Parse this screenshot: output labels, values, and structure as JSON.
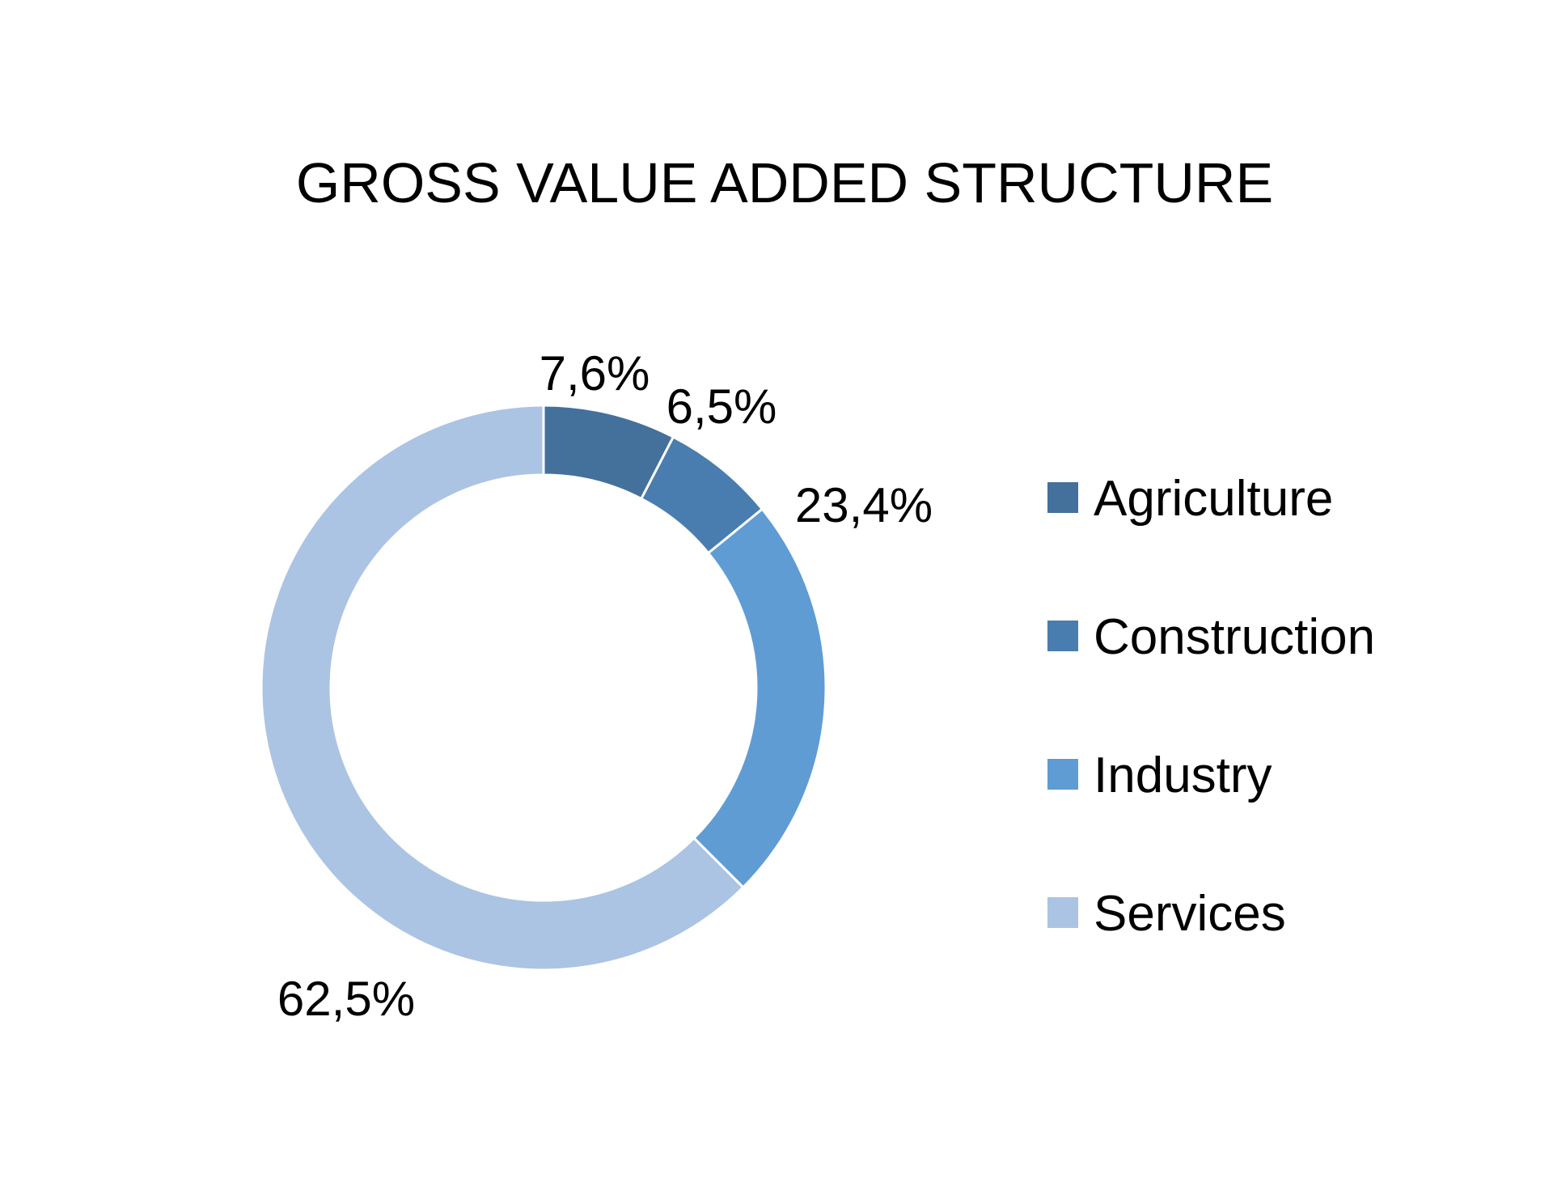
{
  "chart_data": {
    "type": "pie",
    "variant": "donut",
    "title": "GROSS VALUE ADDED STRUCTURE",
    "categories": [
      "Agriculture",
      "Construction",
      "Industry",
      "Services"
    ],
    "values": [
      7.6,
      6.5,
      23.4,
      62.5
    ],
    "data_labels": [
      "7,6%",
      "6,5%",
      "23,4%",
      "62,5%"
    ],
    "colors": [
      "#44709c",
      "#4a7daf",
      "#5f9cd4",
      "#abc4e3"
    ],
    "legend": {
      "position": "right",
      "entries": [
        "Agriculture",
        "Construction",
        "Industry",
        "Services"
      ]
    }
  }
}
